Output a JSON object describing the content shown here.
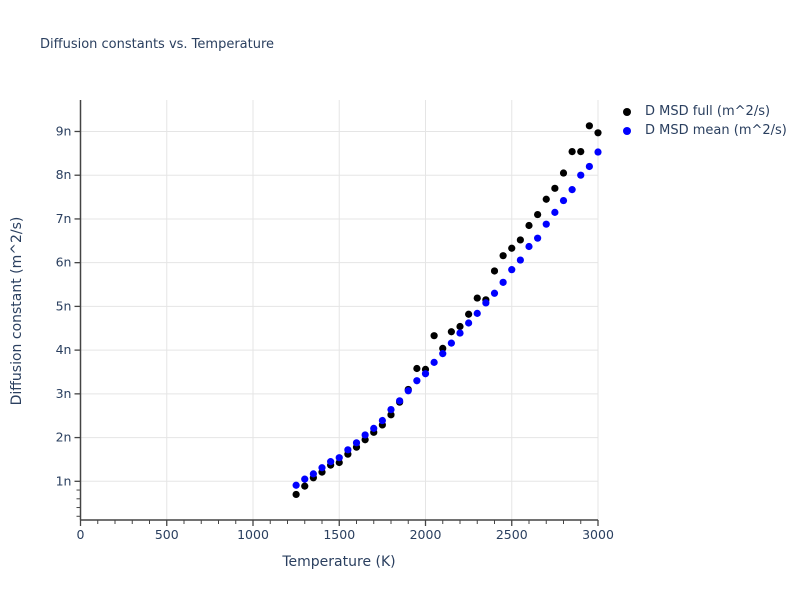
{
  "title": "Diffusion constants vs. Temperature",
  "colors": {
    "background": "#ffffff",
    "text": "#2a3f5f",
    "grid": "#e5e5e5",
    "axis_line": "#444444",
    "series_full": "#000000",
    "series_mean": "#0000ff"
  },
  "legend": {
    "items": [
      {
        "label": "D MSD full (m^2/s)",
        "color": "#000000"
      },
      {
        "label": "D MSD mean (m^2/s)",
        "color": "#0000ff"
      }
    ]
  },
  "chart_data": {
    "type": "scatter",
    "title": "Diffusion constants vs. Temperature",
    "xlabel": "Temperature (K)",
    "ylabel": "Diffusion constant (m^2/s)",
    "x_ticks": [
      {
        "value": 0,
        "label": "0"
      },
      {
        "value": 500,
        "label": "500"
      },
      {
        "value": 1000,
        "label": "1000"
      },
      {
        "value": 1500,
        "label": "1500"
      },
      {
        "value": 2000,
        "label": "2000"
      },
      {
        "value": 2500,
        "label": "2500"
      },
      {
        "value": 3000,
        "label": "3000"
      }
    ],
    "x_minor_tick_step": 100,
    "y_ticks": [
      {
        "value": 1,
        "label": "1n"
      },
      {
        "value": 2,
        "label": "2n"
      },
      {
        "value": 3,
        "label": "3n"
      },
      {
        "value": 4,
        "label": "4n"
      },
      {
        "value": 5,
        "label": "5n"
      },
      {
        "value": 6,
        "label": "6n"
      },
      {
        "value": 7,
        "label": "7n"
      },
      {
        "value": 8,
        "label": "8n"
      },
      {
        "value": 9,
        "label": "9n"
      }
    ],
    "y_minor_ticks": [
      0.2,
      0.4,
      0.6,
      0.8
    ],
    "xlim": [
      0,
      3000
    ],
    "ylim": [
      0.115,
      9.72
    ],
    "y_unit": "1e-9 m^2/s",
    "grid": true,
    "legend_position": "top-right",
    "x": [
      1250,
      1300,
      1350,
      1400,
      1450,
      1500,
      1550,
      1600,
      1650,
      1700,
      1750,
      1800,
      1850,
      1900,
      1950,
      2000,
      2050,
      2100,
      2150,
      2200,
      2250,
      2300,
      2350,
      2400,
      2450,
      2500,
      2550,
      2600,
      2650,
      2700,
      2750,
      2800,
      2850,
      2900,
      2950,
      3000
    ],
    "series": [
      {
        "name": "D MSD full (m^2/s)",
        "color": "#000000",
        "values": [
          0.7,
          0.89,
          1.08,
          1.21,
          1.37,
          1.43,
          1.62,
          1.78,
          1.95,
          2.12,
          2.29,
          2.52,
          2.81,
          3.1,
          3.58,
          3.56,
          4.33,
          4.04,
          4.42,
          4.54,
          4.82,
          5.19,
          5.15,
          5.81,
          6.16,
          6.33,
          6.52,
          6.85,
          7.1,
          7.45,
          7.7,
          8.05,
          8.54,
          8.54,
          9.13,
          8.97
        ]
      },
      {
        "name": "D MSD mean (m^2/s)",
        "color": "#0000ff",
        "values": [
          0.91,
          1.05,
          1.17,
          1.31,
          1.45,
          1.54,
          1.72,
          1.88,
          2.06,
          2.21,
          2.39,
          2.64,
          2.84,
          3.07,
          3.3,
          3.46,
          3.72,
          3.92,
          4.16,
          4.39,
          4.62,
          4.84,
          5.08,
          5.3,
          5.55,
          5.84,
          6.06,
          6.37,
          6.56,
          6.88,
          7.15,
          7.42,
          7.67,
          8.0,
          8.2,
          8.53
        ]
      }
    ]
  }
}
